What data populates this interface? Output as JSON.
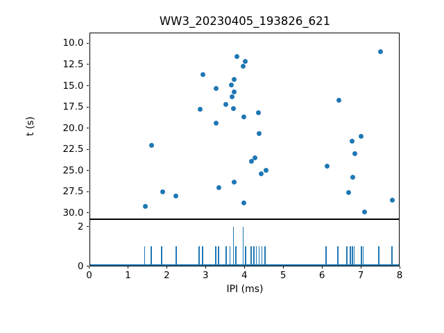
{
  "figure": {
    "title": "WW3_20230405_193826_621",
    "background_color": "#ffffff",
    "accent_color": "#1f77b4"
  },
  "chart_data": [
    {
      "type": "scatter",
      "title": "WW3_20230405_193826_621",
      "xlabel": "IPI (ms)",
      "ylabel": "t (s)",
      "xlim": [
        0,
        8
      ],
      "ylim": [
        30.7,
        8.7
      ],
      "y_axis_inverted": true,
      "grid": false,
      "legend": "none",
      "marker_color": "#1f77b4",
      "x_tick_labels": [
        "0",
        "1",
        "2",
        "3",
        "4",
        "5",
        "6",
        "7",
        "8"
      ],
      "y_tick_labels": [
        "10.0",
        "12.5",
        "15.0",
        "17.5",
        "20.0",
        "22.5",
        "25.0",
        "27.5",
        "30.0"
      ],
      "points": [
        [
          1.44,
          29.2
        ],
        [
          1.6,
          22.0
        ],
        [
          1.89,
          27.5
        ],
        [
          2.24,
          28.0
        ],
        [
          2.86,
          17.8
        ],
        [
          2.94,
          13.7
        ],
        [
          3.27,
          15.3
        ],
        [
          3.27,
          19.4
        ],
        [
          3.35,
          27.0
        ],
        [
          3.53,
          17.2
        ],
        [
          3.66,
          14.9
        ],
        [
          3.69,
          16.3
        ],
        [
          3.71,
          17.7
        ],
        [
          3.73,
          26.4
        ],
        [
          3.74,
          14.3
        ],
        [
          3.74,
          15.7
        ],
        [
          3.81,
          11.6
        ],
        [
          3.97,
          12.7
        ],
        [
          3.98,
          18.7
        ],
        [
          3.99,
          28.8
        ],
        [
          4.03,
          12.1
        ],
        [
          4.18,
          23.9
        ],
        [
          4.28,
          23.5
        ],
        [
          4.36,
          18.2
        ],
        [
          4.38,
          20.6
        ],
        [
          4.44,
          25.4
        ],
        [
          4.56,
          25.0
        ],
        [
          6.14,
          24.5
        ],
        [
          6.44,
          16.7
        ],
        [
          6.68,
          27.6
        ],
        [
          6.77,
          21.5
        ],
        [
          6.8,
          25.8
        ],
        [
          6.84,
          23.0
        ],
        [
          7.01,
          21.0
        ],
        [
          7.09,
          29.9
        ],
        [
          7.5,
          11.0
        ],
        [
          7.82,
          28.5
        ]
      ]
    },
    {
      "type": "bar",
      "subtype": "vlines-spike-train",
      "xlabel": "IPI (ms)",
      "xlim": [
        0,
        8
      ],
      "ylim": [
        0,
        2.4
      ],
      "grid": false,
      "line_color": "#1f77b4",
      "baseline_at_zero": true,
      "y_tick_labels": [
        "0",
        "2"
      ],
      "spikes": [
        [
          1.43,
          1
        ],
        [
          1.6,
          1
        ],
        [
          1.87,
          1
        ],
        [
          2.25,
          1
        ],
        [
          2.84,
          1
        ],
        [
          2.93,
          1
        ],
        [
          3.26,
          1
        ],
        [
          3.34,
          1
        ],
        [
          3.53,
          1
        ],
        [
          3.63,
          1
        ],
        [
          3.72,
          2
        ],
        [
          3.78,
          1
        ],
        [
          3.97,
          2
        ],
        [
          4.03,
          1
        ],
        [
          4.17,
          1
        ],
        [
          4.24,
          1
        ],
        [
          4.31,
          1
        ],
        [
          4.38,
          1
        ],
        [
          4.45,
          1
        ],
        [
          4.53,
          1
        ],
        [
          6.1,
          1
        ],
        [
          6.41,
          1
        ],
        [
          6.64,
          1
        ],
        [
          6.73,
          1
        ],
        [
          6.78,
          1
        ],
        [
          6.83,
          1
        ],
        [
          7.01,
          1
        ],
        [
          7.06,
          1
        ],
        [
          7.46,
          1
        ],
        [
          7.8,
          1
        ]
      ]
    }
  ]
}
